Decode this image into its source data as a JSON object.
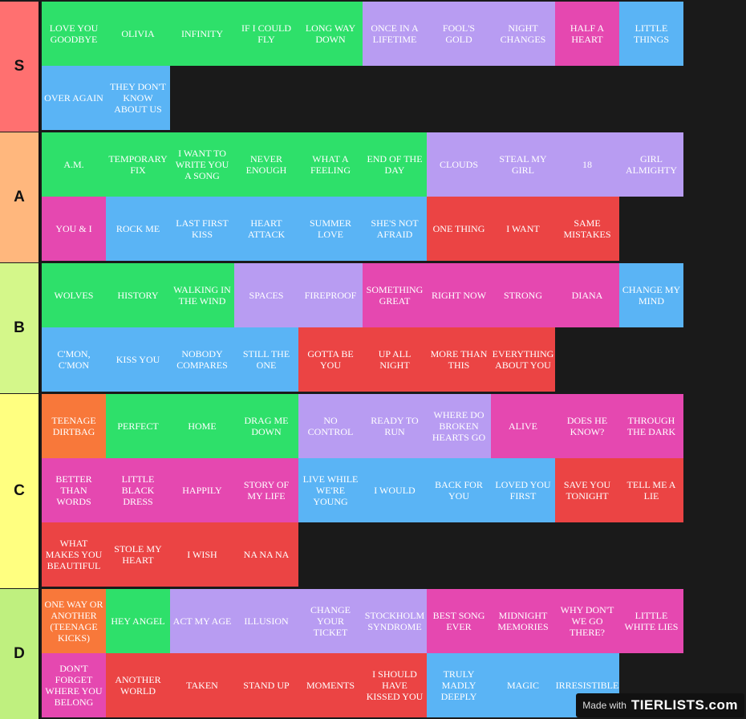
{
  "colors": {
    "green": "#2ee06a",
    "purple": "#b89cf2",
    "pink": "#e548b0",
    "blue": "#5ab4f5",
    "red": "#eb4444",
    "orange": "#f8783a"
  },
  "tiers": [
    {
      "label": "S",
      "color": "#ff7070",
      "items": [
        {
          "text": "LOVE YOU GOODBYE",
          "color": "green"
        },
        {
          "text": "OLIVIA",
          "color": "green"
        },
        {
          "text": "INFINITY",
          "color": "green"
        },
        {
          "text": "IF I COULD FLY",
          "color": "green"
        },
        {
          "text": "LONG WAY DOWN",
          "color": "green"
        },
        {
          "text": "ONCE IN A LIFETIME",
          "color": "purple"
        },
        {
          "text": "FOOL'S GOLD",
          "color": "purple"
        },
        {
          "text": "NIGHT CHANGES",
          "color": "purple"
        },
        {
          "text": "HALF A HEART",
          "color": "pink"
        },
        {
          "text": "LITTLE THINGS",
          "color": "blue"
        },
        {
          "text": "OVER AGAIN",
          "color": "blue"
        },
        {
          "text": "THEY DON'T KNOW ABOUT US",
          "color": "blue"
        }
      ]
    },
    {
      "label": "A",
      "color": "#ffb77d",
      "items": [
        {
          "text": "A.M.",
          "color": "green"
        },
        {
          "text": "TEMPORARY FIX",
          "color": "green"
        },
        {
          "text": "I WANT TO WRITE YOU A SONG",
          "color": "green"
        },
        {
          "text": "NEVER ENOUGH",
          "color": "green"
        },
        {
          "text": "WHAT A FEELING",
          "color": "green"
        },
        {
          "text": "END OF THE DAY",
          "color": "green"
        },
        {
          "text": "CLOUDS",
          "color": "purple"
        },
        {
          "text": "STEAL MY GIRL",
          "color": "purple"
        },
        {
          "text": "18",
          "color": "purple"
        },
        {
          "text": "GIRL ALMIGHTY",
          "color": "purple"
        },
        {
          "text": "YOU & I",
          "color": "pink"
        },
        {
          "text": "ROCK ME",
          "color": "blue"
        },
        {
          "text": "LAST FIRST KISS",
          "color": "blue"
        },
        {
          "text": "HEART ATTACK",
          "color": "blue"
        },
        {
          "text": "SUMMER LOVE",
          "color": "blue"
        },
        {
          "text": "SHE'S NOT AFRAID",
          "color": "blue"
        },
        {
          "text": "ONE THING",
          "color": "red"
        },
        {
          "text": "I WANT",
          "color": "red"
        },
        {
          "text": "SAME MISTAKES",
          "color": "red"
        }
      ]
    },
    {
      "label": "B",
      "color": "#d4f78a",
      "items": [
        {
          "text": "WOLVES",
          "color": "green"
        },
        {
          "text": "HISTORY",
          "color": "green"
        },
        {
          "text": "WALKING IN THE WIND",
          "color": "green"
        },
        {
          "text": "SPACES",
          "color": "purple"
        },
        {
          "text": "FIREPROOF",
          "color": "purple"
        },
        {
          "text": "SOMETHING GREAT",
          "color": "pink"
        },
        {
          "text": "RIGHT NOW",
          "color": "pink"
        },
        {
          "text": "STRONG",
          "color": "pink"
        },
        {
          "text": "DIANA",
          "color": "pink"
        },
        {
          "text": "CHANGE MY MIND",
          "color": "blue"
        },
        {
          "text": "C'MON, C'MON",
          "color": "blue"
        },
        {
          "text": "KISS YOU",
          "color": "blue"
        },
        {
          "text": "NOBODY COMPARES",
          "color": "blue"
        },
        {
          "text": "STILL THE ONE",
          "color": "blue"
        },
        {
          "text": "GOTTA BE YOU",
          "color": "red"
        },
        {
          "text": "UP ALL NIGHT",
          "color": "red"
        },
        {
          "text": "MORE THAN THIS",
          "color": "red"
        },
        {
          "text": "EVERYTHING ABOUT YOU",
          "color": "red"
        }
      ]
    },
    {
      "label": "C",
      "color": "#ffff80",
      "items": [
        {
          "text": "TEENAGE DIRTBAG",
          "color": "orange"
        },
        {
          "text": "PERFECT",
          "color": "green"
        },
        {
          "text": "HOME",
          "color": "green"
        },
        {
          "text": "DRAG ME DOWN",
          "color": "green"
        },
        {
          "text": "NO CONTROL",
          "color": "purple"
        },
        {
          "text": "READY TO RUN",
          "color": "purple"
        },
        {
          "text": "WHERE DO BROKEN HEARTS GO",
          "color": "purple"
        },
        {
          "text": "ALIVE",
          "color": "pink"
        },
        {
          "text": "DOES HE KNOW?",
          "color": "pink"
        },
        {
          "text": "THROUGH THE DARK",
          "color": "pink"
        },
        {
          "text": "BETTER THAN WORDS",
          "color": "pink"
        },
        {
          "text": "LITTLE BLACK DRESS",
          "color": "pink"
        },
        {
          "text": "HAPPILY",
          "color": "pink"
        },
        {
          "text": "STORY OF MY LIFE",
          "color": "pink"
        },
        {
          "text": "LIVE WHILE WE'RE YOUNG",
          "color": "blue"
        },
        {
          "text": "I WOULD",
          "color": "blue"
        },
        {
          "text": "BACK FOR YOU",
          "color": "blue"
        },
        {
          "text": "LOVED YOU FIRST",
          "color": "blue"
        },
        {
          "text": "SAVE YOU TONIGHT",
          "color": "red"
        },
        {
          "text": "TELL ME A LIE",
          "color": "red"
        },
        {
          "text": "WHAT MAKES YOU BEAUTIFUL",
          "color": "red"
        },
        {
          "text": "STOLE MY HEART",
          "color": "red"
        },
        {
          "text": "I WISH",
          "color": "red"
        },
        {
          "text": "NA NA NA",
          "color": "red"
        }
      ]
    },
    {
      "label": "D",
      "color": "#bff07f",
      "items": [
        {
          "text": "ONE WAY OR ANOTHER (TEENAGE KICKS)",
          "color": "orange"
        },
        {
          "text": "HEY ANGEL",
          "color": "green"
        },
        {
          "text": "ACT MY AGE",
          "color": "purple"
        },
        {
          "text": "ILLUSION",
          "color": "purple"
        },
        {
          "text": "CHANGE YOUR TICKET",
          "color": "purple"
        },
        {
          "text": "STOCKHOLM SYNDROME",
          "color": "purple"
        },
        {
          "text": "BEST SONG EVER",
          "color": "pink"
        },
        {
          "text": "MIDNIGHT MEMORIES",
          "color": "pink"
        },
        {
          "text": "WHY DON'T WE GO THERE?",
          "color": "pink"
        },
        {
          "text": "LITTLE WHITE LIES",
          "color": "pink"
        },
        {
          "text": "DON'T FORGET WHERE YOU BELONG",
          "color": "pink"
        },
        {
          "text": "ANOTHER WORLD",
          "color": "red"
        },
        {
          "text": "TAKEN",
          "color": "red"
        },
        {
          "text": "STAND UP",
          "color": "red"
        },
        {
          "text": "MOMENTS",
          "color": "red"
        },
        {
          "text": "I SHOULD HAVE KISSED YOU",
          "color": "red"
        },
        {
          "text": "TRULY MADLY DEEPLY",
          "color": "blue"
        },
        {
          "text": "MAGIC",
          "color": "blue"
        },
        {
          "text": "IRRESISTIBLE",
          "color": "blue"
        }
      ]
    }
  ],
  "watermark": {
    "made_with": "Made with",
    "brand": "TIERLISTS.com"
  }
}
